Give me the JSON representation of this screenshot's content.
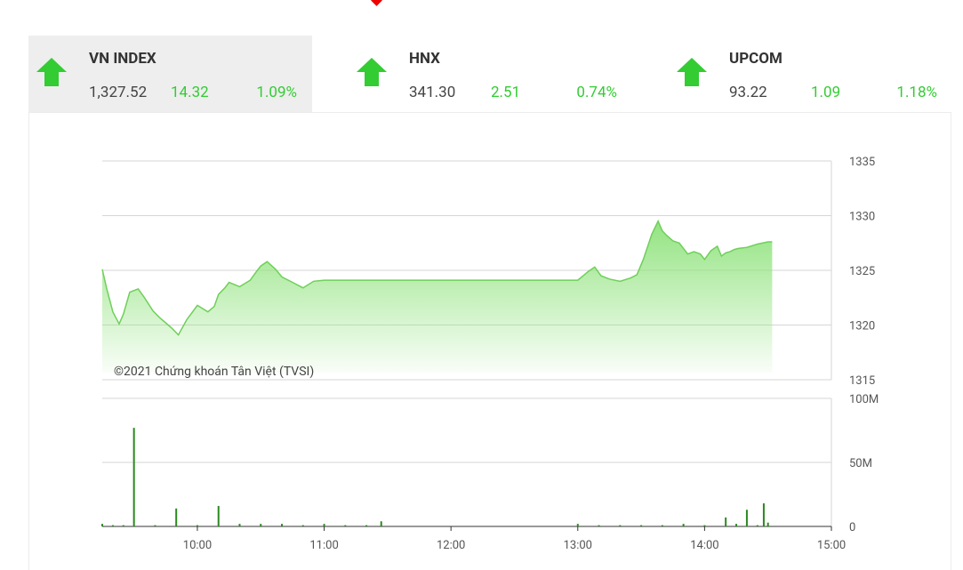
{
  "indices": [
    {
      "name": "VN INDEX",
      "value": "1,327.52",
      "change": "14.32",
      "percent": "1.09%",
      "direction": "up",
      "active": true
    },
    {
      "name": "HNX",
      "value": "341.30",
      "change": "2.51",
      "percent": "0.74%",
      "direction": "up",
      "active": false
    },
    {
      "name": "UPCOM",
      "value": "93.22",
      "change": "1.09",
      "percent": "1.18%",
      "direction": "up",
      "active": false
    }
  ],
  "colors": {
    "up": "#33cc33",
    "area": "#8de27a",
    "line": "#6fcf5a",
    "volume": "#2a8a1e"
  },
  "chart_data": [
    {
      "type": "area",
      "copyright": "©2021 Chứng khoán Tân Việt (TVSI)",
      "ylim": [
        1315,
        1335
      ],
      "y_ticks": [
        "1335",
        "1330",
        "1325",
        "1320",
        "1315"
      ],
      "x_ticks": [
        "10:00",
        "11:00",
        "12:00",
        "13:00",
        "14:00",
        "15:00"
      ],
      "series": [
        {
          "x": [
            "9:15",
            "9:17",
            "9:20",
            "9:23",
            "9:25",
            "9:28",
            "9:32",
            "9:35",
            "9:39",
            "9:42",
            "9:45",
            "9:48",
            "9:51",
            "9:55",
            "10:00",
            "10:05",
            "10:08",
            "10:10",
            "10:13",
            "10:15",
            "10:20",
            "10:25",
            "10:28",
            "10:30",
            "10:33",
            "10:37",
            "10:40",
            "10:45",
            "10:50",
            "10:55",
            "11:00",
            "11:05",
            "11:08",
            "11:12",
            "11:15",
            "11:18",
            "11:20",
            "11:22",
            "11:25",
            "11:30",
            "11:30",
            "13:00",
            "13:05",
            "13:08",
            "13:11",
            "13:15",
            "13:20",
            "13:25",
            "13:28",
            "13:31",
            "13:35",
            "13:38",
            "13:40",
            "13:42",
            "13:45",
            "13:48",
            "13:52",
            "13:55",
            "13:58",
            "14:00",
            "14:03",
            "14:06",
            "14:08",
            "14:10",
            "14:12",
            "14:14",
            "14:16",
            "14:20",
            "14:25",
            "14:30",
            "14:32"
          ],
          "y": [
            1325.1,
            1323.4,
            1321.2,
            1320.1,
            1321.0,
            1323.0,
            1323.3,
            1322.5,
            1321.3,
            1320.7,
            1320.2,
            1319.7,
            1319.1,
            1320.5,
            1321.8,
            1321.2,
            1321.7,
            1322.8,
            1323.4,
            1323.9,
            1323.5,
            1324.1,
            1324.9,
            1325.4,
            1325.8,
            1325.1,
            1324.4,
            1323.9,
            1323.4,
            1324.0,
            1324.1,
            1324.1,
            1324.1,
            1324.1,
            1324.1,
            1324.1,
            1324.1,
            1324.1,
            1324.1,
            1324.1,
            1324.1,
            1324.1,
            1324.9,
            1325.3,
            1324.5,
            1324.2,
            1324.0,
            1324.3,
            1324.6,
            1326.0,
            1328.3,
            1329.5,
            1328.6,
            1328.2,
            1327.7,
            1327.5,
            1326.5,
            1326.7,
            1326.5,
            1326.0,
            1326.8,
            1327.2,
            1326.3,
            1326.6,
            1326.7,
            1326.9,
            1327.0,
            1327.1,
            1327.4,
            1327.6,
            1327.6
          ]
        }
      ]
    },
    {
      "type": "bar",
      "ylim": [
        0,
        100
      ],
      "y_ticks": [
        "100M",
        "50M",
        "0"
      ],
      "series": [
        {
          "x": [
            "9:15",
            "9:20",
            "9:25",
            "9:30",
            "9:40",
            "9:50",
            "10:00",
            "10:10",
            "10:20",
            "10:30",
            "10:40",
            "10:50",
            "11:00",
            "11:10",
            "11:20",
            "11:27",
            "13:00",
            "13:10",
            "13:20",
            "13:30",
            "13:40",
            "13:50",
            "14:00",
            "14:10",
            "14:15",
            "14:20",
            "14:25",
            "14:28",
            "14:30"
          ],
          "values": [
            2,
            1,
            1,
            77,
            1,
            14,
            1,
            16,
            2,
            2,
            2,
            1,
            2,
            1,
            1,
            4,
            2,
            1,
            1,
            1,
            1,
            2,
            1,
            7,
            2,
            13,
            1,
            18,
            3
          ]
        }
      ]
    }
  ]
}
